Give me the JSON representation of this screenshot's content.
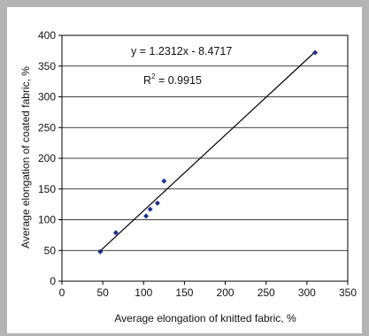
{
  "chart_data": {
    "type": "scatter",
    "xlabel": "Average elongation of knitted fabric, %",
    "ylabel": "Average elongation of coated fabric, %",
    "xlim": [
      0,
      350
    ],
    "ylim": [
      0,
      400
    ],
    "x_ticks": [
      "0",
      "50",
      "100",
      "150",
      "200",
      "250",
      "300",
      "350"
    ],
    "y_ticks": [
      "0",
      "50",
      "100",
      "150",
      "200",
      "250",
      "300",
      "350",
      "400"
    ],
    "grid": "horizontal",
    "legend": "none",
    "points": [
      {
        "x": 47,
        "y": 48
      },
      {
        "x": 66,
        "y": 79
      },
      {
        "x": 103,
        "y": 106
      },
      {
        "x": 108,
        "y": 117
      },
      {
        "x": 117,
        "y": 127
      },
      {
        "x": 125,
        "y": 163
      },
      {
        "x": 310,
        "y": 372
      }
    ],
    "trendline": {
      "slope": 1.2312,
      "intercept": -8.4717,
      "x_start": 45,
      "x_end": 310
    },
    "annotations": {
      "equation": "y = 1.2312x - 8.4717",
      "r2_prefix": "R",
      "r2_sup": "2",
      "r2_suffix": " = 0.9915"
    },
    "colors": {
      "marker": "#1f2f8f",
      "line": "#000000",
      "grid": "#000000"
    }
  }
}
